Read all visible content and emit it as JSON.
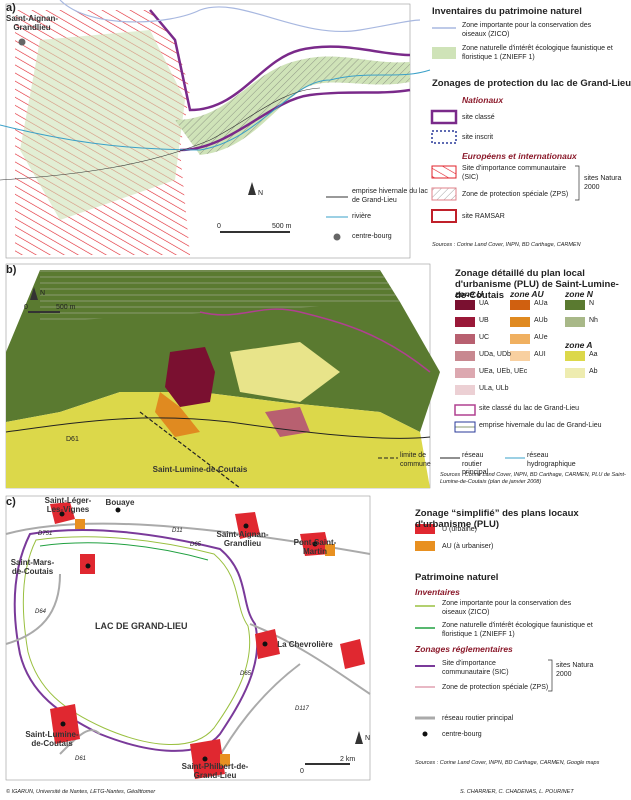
{
  "panel_a": {
    "label": "a)",
    "place": "Saint-Aignan-Grandlieu",
    "legend": {
      "title1": "Inventaires du patrimoine naturel",
      "zico": "Zone importante pour la conservation des oiseaux (ZICO)",
      "znieff": "Zone naturelle d'intérêt écologique faunistique et floristique 1 (ZNIEFF 1)",
      "title2": "Zonages de protection du lac de Grand-Lieu",
      "nationaux": "Nationaux",
      "site_classe": "site classé",
      "site_inscrit": "site inscrit",
      "europeens": "Européens et internationaux",
      "sic": "Site d'importance communautaire (SIC)",
      "zps": "Zone de protection spéciale (ZPS)",
      "natura": "sites Natura 2000",
      "ramsar": "site RAMSAR",
      "emprise": "emprise hivernale du lac de Grand-Lieu",
      "riviere": "rivière",
      "bourg": "centre-bourg"
    },
    "scale": [
      "0",
      "500 m"
    ],
    "north": "N",
    "sources": "Sources : Corine Land Cover, INPN, BD Carthage, CARMEN"
  },
  "panel_b": {
    "label": "b)",
    "title": "Zonage détaillé du plan local d'urbanisme (PLU) de Saint-Lumine-de-Coutais",
    "zone_u": {
      "title": "zone U",
      "items": [
        "UA",
        "UB",
        "UC",
        "UDa, UDb",
        "UEa, UEb, UEc",
        "ULa, ULb"
      ]
    },
    "zone_au": {
      "title": "zone AU",
      "items": [
        "AUa",
        "AUb",
        "AUe",
        "AUI"
      ]
    },
    "zone_n": {
      "title": "zone N",
      "items": [
        "N",
        "Nh"
      ]
    },
    "zone_a": {
      "title": "zone A",
      "items": [
        "Aa",
        "Ab"
      ]
    },
    "site_classe": "site classé du lac de Grand-Lieu",
    "emprise": "emprise hivernale du lac de Grand-Lieu",
    "limite": "limite de commune",
    "routier": "réseau routier principal",
    "hydro": "réseau hydrographique",
    "road": "D61",
    "town": "Saint-Lumine-de-Coutais",
    "scale": [
      "0",
      "500 m"
    ],
    "north": "N",
    "sources": "Sources : Corine Land Cover, INPN, BD Carthage, CARMEN, PLU de Saint-Lumine-de-Coutais (plan de janvier 2008)"
  },
  "panel_c": {
    "label": "c)",
    "title": "Zonage “simplifié” des plans locaux d'urbanisme (PLU)",
    "u": "U (urbaine)",
    "au": "AU (à urbaniser)",
    "patrimoine": "Patrimoine naturel",
    "inventaires": "Inventaires",
    "zico": "Zone importante pour la conservation des oiseaux (ZICO)",
    "znieff": "Zone naturelle d'intérêt écologique faunistique et floristique 1 (ZNIEFF 1)",
    "reglementaires": "Zonages réglementaires",
    "sic": "Site d'importance communautaire (SIC)",
    "zps": "Zone de protection spéciale (ZPS)",
    "natura": "sites Natura 2000",
    "routier": "réseau routier principal",
    "bourg": "centre-bourg",
    "places": [
      "Saint-Léger-Les-Vignes",
      "Bouaye",
      "Saint-Aignan-Grandlieu",
      "Pont-Saint-Martin",
      "Saint-Mars-de-Coutais",
      "La Chevrolière",
      "Saint-Lumine-de-Coutais",
      "Saint-Philbert-de-Grand-Lieu"
    ],
    "roads": [
      "D751",
      "D11",
      "D65",
      "D64",
      "D65",
      "D117",
      "D61"
    ],
    "lake": "LAC DE GRAND-LIEU",
    "scale": [
      "0",
      "2 km"
    ],
    "north": "N",
    "sources": "Sources : Corine Land Cover, INPN, BD Carthage, CARMEN, Google maps"
  },
  "footer": {
    "left": "© IGARUN, Université de Nantes, LETG-Nantes, Géolittomer",
    "right": "S. CHARRIER, C. CHADENAS, L. POURINET"
  }
}
